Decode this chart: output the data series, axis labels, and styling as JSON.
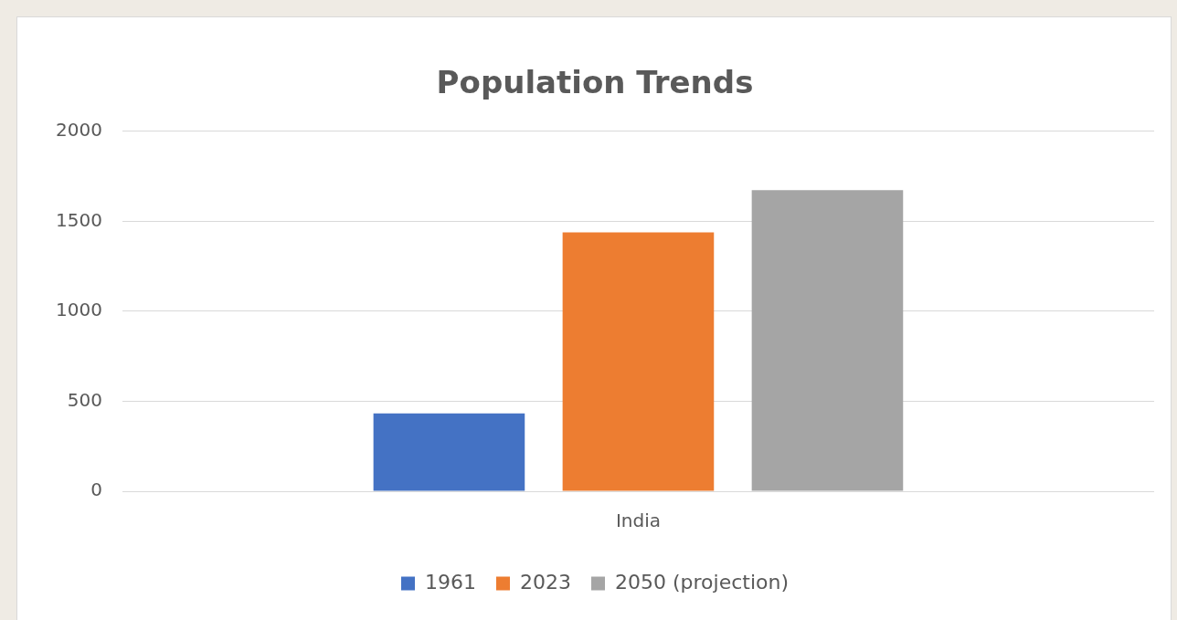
{
  "chart_data": {
    "type": "bar",
    "title": "Population Trends",
    "categories": [
      "India"
    ],
    "series": [
      {
        "name": "1961",
        "color": "#4472c4",
        "values": [
          432
        ]
      },
      {
        "name": "2023",
        "color": "#ed7d31",
        "values": [
          1438
        ]
      },
      {
        "name": "2050 (projection)",
        "color": "#a5a5a5",
        "values": [
          1673
        ]
      }
    ],
    "ylim": [
      0,
      2000
    ],
    "yticks": [
      0,
      500,
      1000,
      1500,
      2000
    ],
    "grid": "y",
    "legend": "bottom"
  }
}
